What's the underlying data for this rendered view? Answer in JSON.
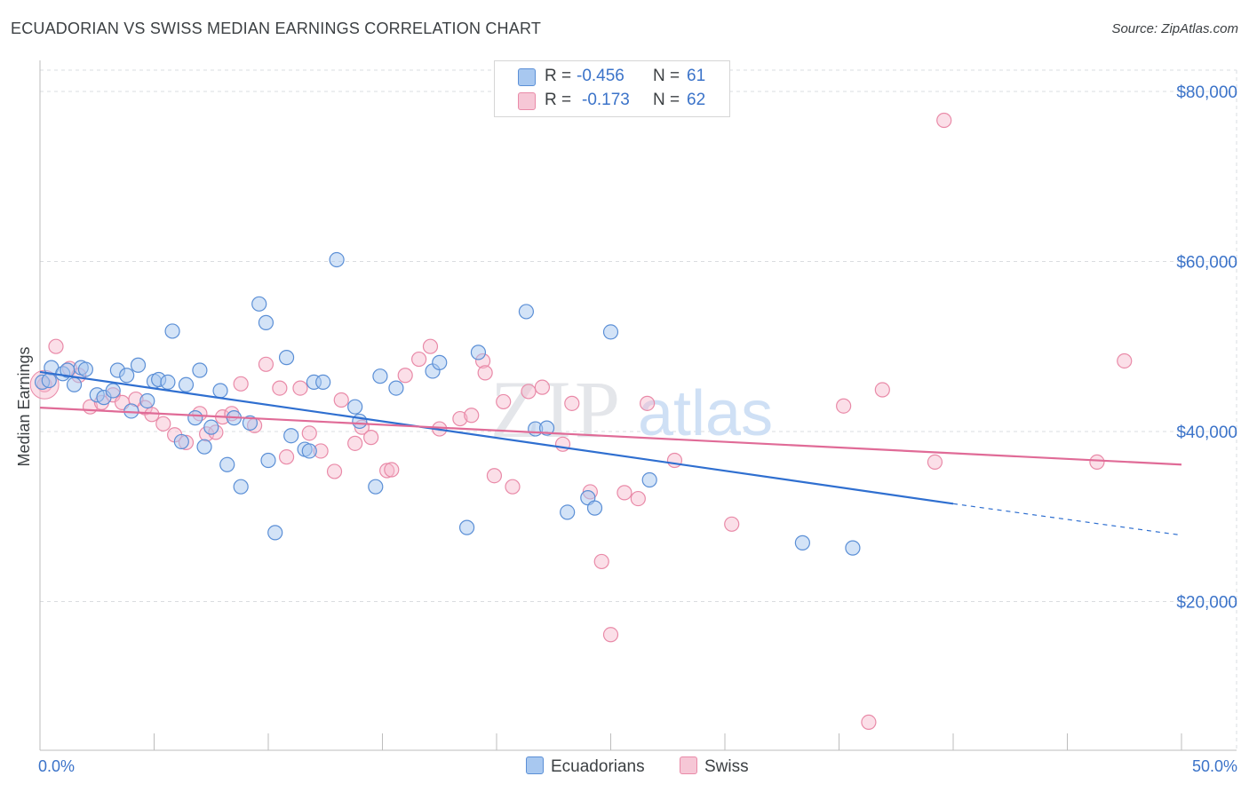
{
  "header": {
    "title": "ECUADORIAN VS SWISS MEDIAN EARNINGS CORRELATION CHART",
    "source": "Source: ZipAtlas.com"
  },
  "legend": {
    "ecuadorians": {
      "r_label": "R =",
      "r_value": "-0.456",
      "n_label": "N =",
      "n_value": "61"
    },
    "swiss": {
      "r_label": "R =",
      "r_value": "-0.173",
      "n_label": "N =",
      "n_value": "62"
    }
  },
  "bottom_legend": {
    "ecuadorians": "Ecuadorians",
    "swiss": "Swiss"
  },
  "watermark": {
    "part1": "ZIP",
    "part2": "atlas"
  },
  "colors": {
    "blue_fill": "#a8c8f0",
    "blue_stroke": "#5b8fd6",
    "blue_line": "#2f6fd0",
    "pink_fill": "#f6b8cc",
    "pink_stroke": "#e98aa8",
    "pink_line": "#e06b97",
    "grid": "#dadce0",
    "axis_text": "#3b73c9"
  },
  "chart_data": {
    "type": "scatter",
    "title": "ECUADORIAN VS SWISS MEDIAN EARNINGS CORRELATION CHART",
    "xlabel": "",
    "ylabel": "Median Earnings",
    "xlim": [
      0,
      50
    ],
    "ylim": [
      2500,
      82500
    ],
    "x_tick_labels": [
      "0.0%",
      "50.0%"
    ],
    "y_ticks": [
      20000,
      40000,
      60000,
      80000
    ],
    "y_tick_labels": [
      "$20,000",
      "$40,000",
      "$60,000",
      "$80,000"
    ],
    "grid": true,
    "series": [
      {
        "name": "Ecuadorians",
        "trend": {
          "x0": 0,
          "y0": 47000,
          "x1": 40,
          "y1": 31500,
          "dashed_to_x": 50,
          "dashed_to_y": 27800
        },
        "points": [
          [
            0.1,
            45800
          ],
          [
            0.5,
            47500
          ],
          [
            1.0,
            46800
          ],
          [
            1.2,
            47200
          ],
          [
            1.5,
            45500
          ],
          [
            1.8,
            47500
          ],
          [
            2.0,
            47300
          ],
          [
            2.5,
            44300
          ],
          [
            2.8,
            44000
          ],
          [
            3.2,
            44800
          ],
          [
            3.4,
            47200
          ],
          [
            3.8,
            46600
          ],
          [
            4.0,
            42400
          ],
          [
            4.3,
            47800
          ],
          [
            4.7,
            43600
          ],
          [
            5.0,
            45900
          ],
          [
            5.2,
            46100
          ],
          [
            5.6,
            45800
          ],
          [
            5.8,
            51800
          ],
          [
            6.2,
            38800
          ],
          [
            6.4,
            45500
          ],
          [
            6.8,
            41600
          ],
          [
            7.0,
            47200
          ],
          [
            7.2,
            38200
          ],
          [
            7.5,
            40500
          ],
          [
            7.9,
            44800
          ],
          [
            8.2,
            36100
          ],
          [
            8.5,
            41600
          ],
          [
            8.8,
            33500
          ],
          [
            9.2,
            41000
          ],
          [
            9.6,
            55000
          ],
          [
            9.9,
            52800
          ],
          [
            10.0,
            36600
          ],
          [
            10.3,
            28100
          ],
          [
            10.8,
            48700
          ],
          [
            11.0,
            39500
          ],
          [
            11.6,
            37900
          ],
          [
            11.8,
            37700
          ],
          [
            12.0,
            45800
          ],
          [
            12.4,
            45800
          ],
          [
            13.0,
            60200
          ],
          [
            13.8,
            42900
          ],
          [
            14.0,
            41200
          ],
          [
            14.7,
            33500
          ],
          [
            14.9,
            46500
          ],
          [
            15.6,
            45100
          ],
          [
            17.2,
            47100
          ],
          [
            17.5,
            48100
          ],
          [
            18.7,
            28700
          ],
          [
            19.2,
            49300
          ],
          [
            21.3,
            54100
          ],
          [
            21.7,
            40300
          ],
          [
            22.2,
            40400
          ],
          [
            23.1,
            30500
          ],
          [
            24.0,
            32200
          ],
          [
            24.3,
            31000
          ],
          [
            25.0,
            51700
          ],
          [
            26.7,
            34300
          ],
          [
            33.4,
            26900
          ],
          [
            35.6,
            26300
          ],
          [
            0.4,
            46000
          ]
        ]
      },
      {
        "name": "Swiss",
        "trend": {
          "x0": 0,
          "y0": 42800,
          "x1": 50,
          "y1": 36100
        },
        "points": [
          [
            0.2,
            45500
          ],
          [
            0.7,
            50000
          ],
          [
            1.3,
            47400
          ],
          [
            1.7,
            46600
          ],
          [
            2.2,
            42900
          ],
          [
            2.7,
            43400
          ],
          [
            3.2,
            44300
          ],
          [
            3.6,
            43400
          ],
          [
            4.2,
            43800
          ],
          [
            4.6,
            42800
          ],
          [
            4.9,
            42000
          ],
          [
            5.4,
            40900
          ],
          [
            5.9,
            39600
          ],
          [
            6.4,
            38700
          ],
          [
            7.0,
            42100
          ],
          [
            7.3,
            39700
          ],
          [
            7.7,
            39900
          ],
          [
            8.0,
            41700
          ],
          [
            8.4,
            42100
          ],
          [
            8.8,
            45600
          ],
          [
            9.4,
            40700
          ],
          [
            9.9,
            47900
          ],
          [
            10.5,
            45100
          ],
          [
            10.8,
            37000
          ],
          [
            11.4,
            45100
          ],
          [
            11.8,
            39800
          ],
          [
            12.3,
            37700
          ],
          [
            12.9,
            35300
          ],
          [
            13.2,
            43700
          ],
          [
            13.8,
            38600
          ],
          [
            14.1,
            40500
          ],
          [
            14.5,
            39300
          ],
          [
            15.2,
            35400
          ],
          [
            15.4,
            35500
          ],
          [
            16.0,
            46600
          ],
          [
            16.6,
            48500
          ],
          [
            17.1,
            50000
          ],
          [
            17.5,
            40300
          ],
          [
            18.4,
            41500
          ],
          [
            18.9,
            41900
          ],
          [
            19.4,
            48300
          ],
          [
            19.5,
            46900
          ],
          [
            19.9,
            34800
          ],
          [
            20.3,
            43500
          ],
          [
            20.7,
            33500
          ],
          [
            21.4,
            44700
          ],
          [
            22.0,
            45200
          ],
          [
            22.9,
            38500
          ],
          [
            23.3,
            43300
          ],
          [
            24.1,
            32900
          ],
          [
            24.6,
            24700
          ],
          [
            25.0,
            16100
          ],
          [
            25.6,
            32800
          ],
          [
            26.2,
            32100
          ],
          [
            26.6,
            43300
          ],
          [
            27.8,
            36600
          ],
          [
            30.3,
            29100
          ],
          [
            35.2,
            43000
          ],
          [
            36.3,
            5800
          ],
          [
            36.9,
            44900
          ],
          [
            39.2,
            36400
          ],
          [
            46.3,
            36400
          ]
        ]
      }
    ],
    "extra_points": {
      "swiss_outliers": [
        [
          39.6,
          76600
        ],
        [
          47.5,
          48300
        ]
      ]
    }
  }
}
